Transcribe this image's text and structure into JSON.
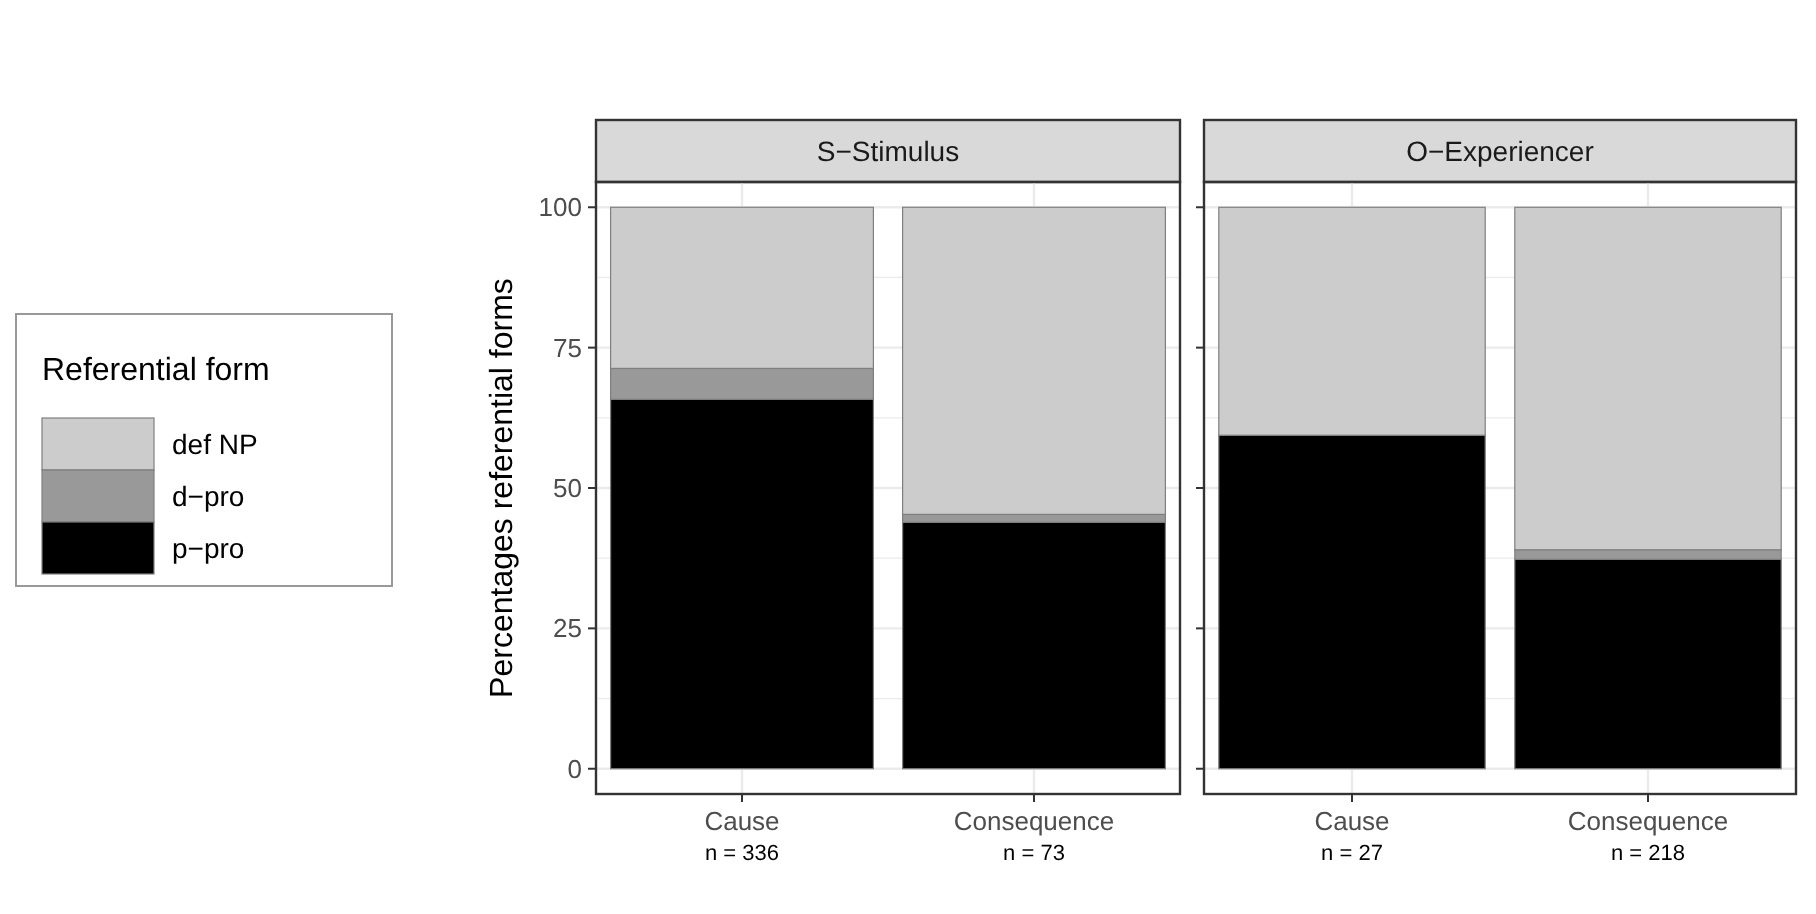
{
  "chart_data": [
    {
      "type": "bar",
      "title": "S−Stimulus",
      "ylabel": "Percentages referential forms",
      "legend_title": "Referential form",
      "legend": "left",
      "stacked": true,
      "grid": true,
      "categories": [
        "Cause\nn = 336",
        "Consequence\nn = 73"
      ],
      "ylim": [
        -4.5,
        104.5
      ],
      "yticks": [
        0,
        25,
        50,
        75,
        100
      ],
      "series": [
        {
          "name": "p−pro",
          "color": "#000000",
          "values": [
            65.8,
            43.9
          ]
        },
        {
          "name": "d−pro",
          "color": "#999999",
          "values": [
            5.5,
            1.4
          ]
        },
        {
          "name": "def NP",
          "color": "#cccccc",
          "values": [
            28.7,
            54.7
          ]
        }
      ]
    },
    {
      "type": "bar",
      "title": "O−Experiencer",
      "stacked": true,
      "grid": true,
      "tick_labels": "x",
      "categories": [
        "Cause\nn = 27",
        "Consequence\nn = 218"
      ],
      "ylim": [
        -4.5,
        104.5
      ],
      "yticks": [
        0,
        25,
        50,
        75,
        100
      ],
      "series": [
        {
          "color": "#000000",
          "values": [
            59.4,
            37.3
          ]
        },
        {
          "color": "#999999",
          "values": [
            0,
            1.7
          ]
        },
        {
          "color": "#cccccc",
          "values": [
            40.6,
            61.0
          ]
        }
      ]
    }
  ]
}
